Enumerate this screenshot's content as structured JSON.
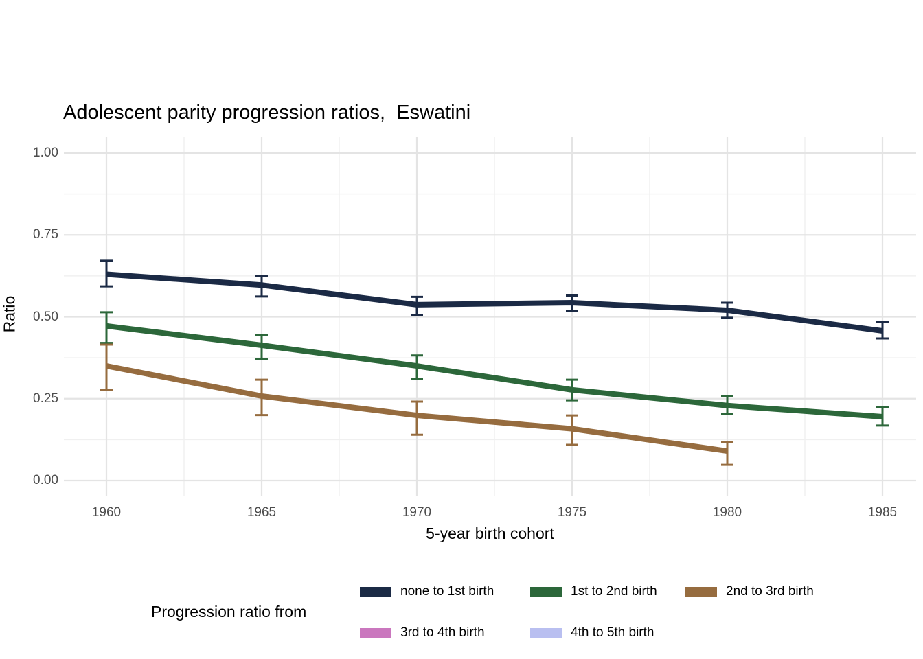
{
  "chart_data": {
    "type": "line",
    "title": "Adolescent parity progression ratios,  Eswatini",
    "xlabel": "5-year birth cohort",
    "ylabel": "Ratio",
    "legend_title": "Progression ratio from",
    "legend_position": "bottom",
    "grid": true,
    "x_ticks": [
      1960,
      1965,
      1970,
      1975,
      1980,
      1985
    ],
    "y_ticks": [
      0.0,
      0.25,
      0.5,
      0.75,
      1.0
    ],
    "xlim": [
      1957.3,
      1987.7
    ],
    "ylim": [
      0,
      1
    ],
    "error_bars": true,
    "colors": {
      "grid_major": "#e4e4e4",
      "grid_minor": "#f0f0f0",
      "tick_label": "#4d4d4d",
      "text": "#000000"
    },
    "series": [
      {
        "name": "none to 1st birth",
        "color": "#1b2a45",
        "x": [
          1960,
          1965,
          1970,
          1975,
          1980,
          1985
        ],
        "y": [
          0.63,
          0.597,
          0.537,
          0.543,
          0.52,
          0.457
        ],
        "ci_low": [
          0.593,
          0.562,
          0.506,
          0.518,
          0.497,
          0.434
        ],
        "ci_high": [
          0.671,
          0.625,
          0.561,
          0.565,
          0.543,
          0.484
        ]
      },
      {
        "name": "1st to 2nd birth",
        "color": "#2c673a",
        "x": [
          1960,
          1965,
          1970,
          1975,
          1980,
          1985
        ],
        "y": [
          0.472,
          0.413,
          0.35,
          0.277,
          0.229,
          0.195
        ],
        "ci_low": [
          0.42,
          0.371,
          0.31,
          0.245,
          0.203,
          0.168
        ],
        "ci_high": [
          0.514,
          0.444,
          0.382,
          0.308,
          0.258,
          0.224
        ]
      },
      {
        "name": "2nd to 3rd birth",
        "color": "#966c3f",
        "x": [
          1960,
          1965,
          1970,
          1975,
          1980
        ],
        "y": [
          0.35,
          0.258,
          0.199,
          0.158,
          0.09
        ],
        "ci_low": [
          0.277,
          0.2,
          0.14,
          0.109,
          0.048
        ],
        "ci_high": [
          0.415,
          0.308,
          0.241,
          0.199,
          0.117
        ]
      },
      {
        "name": "3rd to 4th birth",
        "color": "#ca77be",
        "x": [],
        "y": [],
        "ci_low": [],
        "ci_high": []
      },
      {
        "name": "4th to 5th birth",
        "color": "#b9bff0",
        "x": [],
        "y": [],
        "ci_low": [],
        "ci_high": []
      }
    ]
  }
}
